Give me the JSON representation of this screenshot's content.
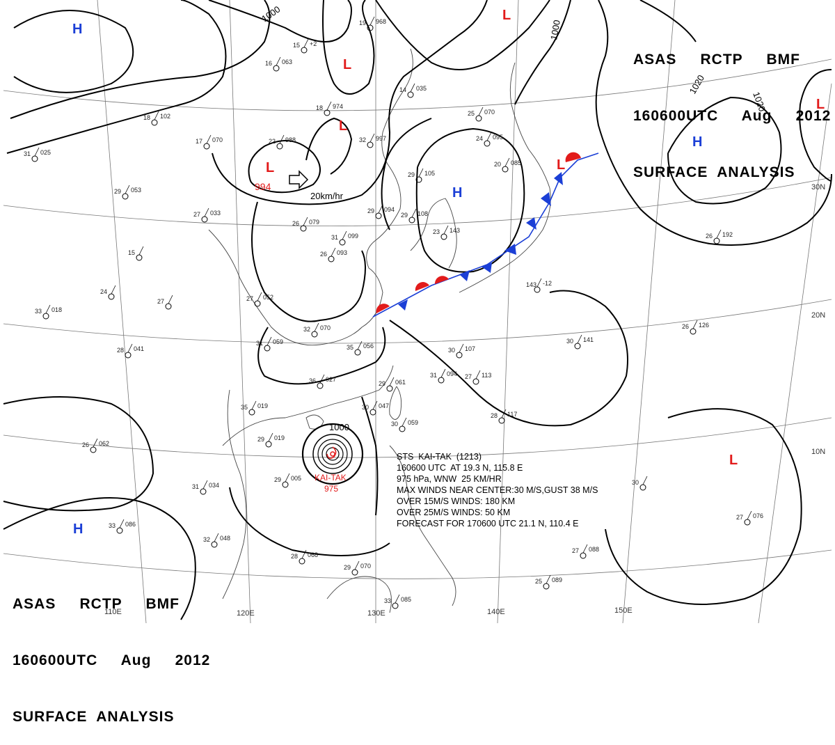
{
  "header": {
    "agency": "ASAS     RCTP     BMF",
    "valid": "160600UTC     Aug     2012",
    "product": "SURFACE  ANALYSIS"
  },
  "footer": {
    "agency": "ASAS     RCTP     BMF",
    "valid": "160600UTC     Aug     2012",
    "product": "SURFACE  ANALYSIS"
  },
  "longitude_labels": [
    "110E",
    "120E",
    "130E",
    "140E",
    "150E"
  ],
  "latitude_labels": [
    "10N",
    "20N",
    "30N"
  ],
  "isobar_labels": [
    "1000",
    "1000",
    "1000",
    "1020",
    "1020"
  ],
  "pressure_centers": [
    {
      "symbol": "H",
      "color": "#1b3fd6",
      "value": ""
    },
    {
      "symbol": "H",
      "color": "#1b3fd6",
      "value": ""
    },
    {
      "symbol": "H",
      "color": "#1b3fd6",
      "value": ""
    },
    {
      "symbol": "H",
      "color": "#1b3fd6",
      "value": ""
    },
    {
      "symbol": "L",
      "color": "#e21b1b",
      "value": ""
    },
    {
      "symbol": "L",
      "color": "#e21b1b",
      "value": ""
    },
    {
      "symbol": "L",
      "color": "#e21b1b",
      "value": "994"
    },
    {
      "symbol": "L",
      "color": "#e21b1b",
      "value": ""
    },
    {
      "symbol": "L",
      "color": "#e21b1b",
      "value": ""
    },
    {
      "symbol": "L",
      "color": "#e21b1b",
      "value": ""
    },
    {
      "symbol": "L",
      "color": "#e21b1b",
      "value": ""
    }
  ],
  "movement": "20km/hr",
  "typhoon": {
    "name": "KAI-TAK",
    "pressure": "975",
    "info": [
      "STS  KAI-TAK  (1213)",
      "160600 UTC  AT 19.3 N, 115.8 E",
      "975 hPa, WNW  25 KM/HR",
      "MAX WINDS NEAR CENTER:30 M/S,GUST 38 M/S",
      "OVER 15M/S WINDS: 180 KM",
      "OVER 25M/S WINDS: 50 KM",
      "FORECAST FOR 170600 UTC 21.1 N, 110.4 E"
    ]
  },
  "stations": [
    {
      "t": "16",
      "p": "063"
    },
    {
      "t": "15",
      "p": "+2"
    },
    {
      "t": "19",
      "p": "968"
    },
    {
      "t": "18",
      "p": "974"
    },
    {
      "t": "22",
      "p": "988"
    },
    {
      "t": "17",
      "p": "070"
    },
    {
      "t": "31",
      "p": "025"
    },
    {
      "t": "32",
      "p": "997"
    },
    {
      "t": "14",
      "p": "035"
    },
    {
      "t": "25",
      "p": "070"
    },
    {
      "t": "24",
      "p": "095"
    },
    {
      "t": "20",
      "p": "085"
    },
    {
      "t": "29",
      "p": "105"
    },
    {
      "t": "29",
      "p": "053"
    },
    {
      "t": "27",
      "p": "033"
    },
    {
      "t": "26",
      "p": "079"
    },
    {
      "t": "31",
      "p": "099"
    },
    {
      "t": "29",
      "p": "094"
    },
    {
      "t": "29",
      "p": "108"
    },
    {
      "t": "23",
      "p": "143"
    },
    {
      "t": "26",
      "p": "093"
    },
    {
      "t": "15",
      "p": ""
    },
    {
      "t": "24",
      "p": ""
    },
    {
      "t": "27",
      "p": ""
    },
    {
      "t": "33",
      "p": "018"
    },
    {
      "t": "27",
      "p": "052"
    },
    {
      "t": "32",
      "p": "070"
    },
    {
      "t": "28",
      "p": "041"
    },
    {
      "t": "31",
      "p": "059"
    },
    {
      "t": "35",
      "p": "056"
    },
    {
      "t": "30",
      "p": "107"
    },
    {
      "t": "31",
      "p": "094"
    },
    {
      "t": "27",
      "p": "113"
    },
    {
      "t": "36",
      "p": "027"
    },
    {
      "t": "29",
      "p": "061"
    },
    {
      "t": "28",
      "p": "117"
    },
    {
      "t": "35",
      "p": "019"
    },
    {
      "t": "30",
      "p": "047"
    },
    {
      "t": "30",
      "p": "059"
    },
    {
      "t": "26",
      "p": "062"
    },
    {
      "t": "29",
      "p": "019"
    },
    {
      "t": "31",
      "p": "034"
    },
    {
      "t": "29",
      "p": "005"
    },
    {
      "t": "33",
      "p": "086"
    },
    {
      "t": "32",
      "p": "048"
    },
    {
      "t": "28",
      "p": "068"
    },
    {
      "t": "29",
      "p": "070"
    },
    {
      "t": "33",
      "p": "085"
    },
    {
      "t": "25",
      "p": "089"
    },
    {
      "t": "27",
      "p": "088"
    },
    {
      "t": "27",
      "p": "076"
    },
    {
      "t": "30",
      "p": "141"
    },
    {
      "t": "26",
      "p": "126"
    },
    {
      "t": "26",
      "p": "192"
    },
    {
      "t": "30",
      "p": ""
    },
    {
      "t": "143",
      "p": "-12"
    },
    {
      "t": "18",
      "p": "102"
    }
  ]
}
